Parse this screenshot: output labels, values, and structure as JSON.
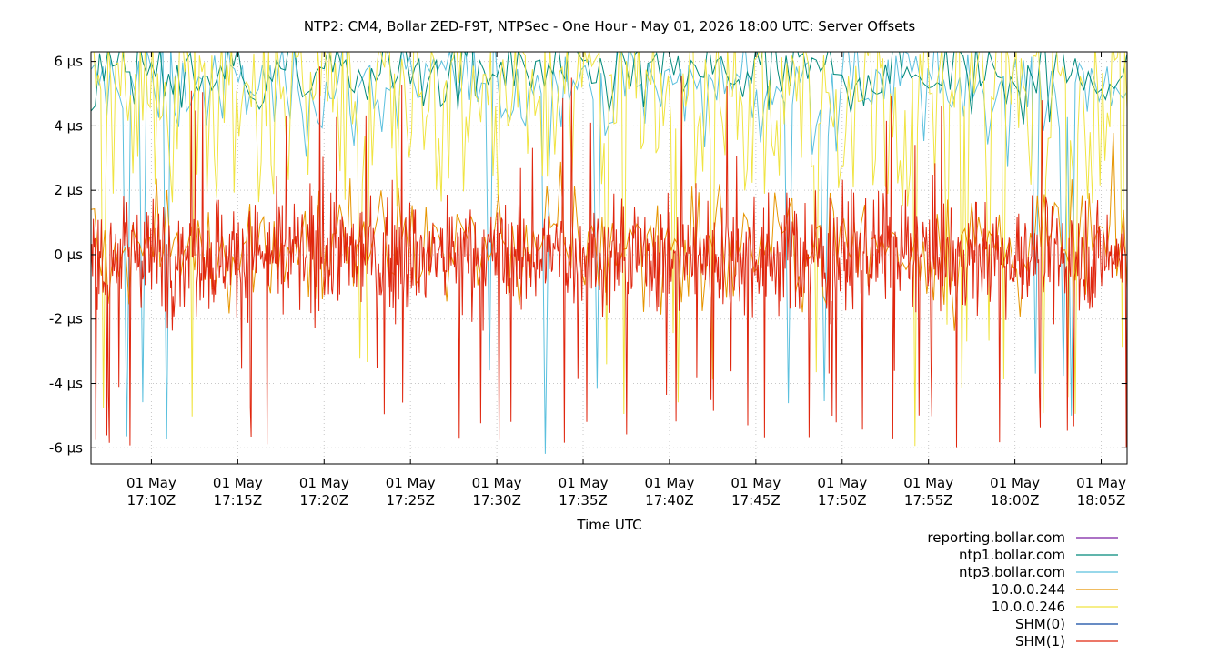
{
  "chart_data": {
    "type": "line",
    "title": "NTP2: CM4, Bollar ZED-F9T, NTPSec - One Hour - May 01, 2026 18:00 UTC: Server Offsets",
    "xlabel": "Time UTC",
    "ylabel": "",
    "x_range": [
      "2026-05-01T17:06:30Z",
      "2026-05-01T18:06:30Z"
    ],
    "ylim": [
      -6.5,
      6.3
    ],
    "y_unit": "µs",
    "grid": true,
    "legend_position": "bottom-right",
    "x_ticks": [
      {
        "t": "17:10",
        "line1": "01 May",
        "line2": "17:10Z"
      },
      {
        "t": "17:15",
        "line1": "01 May",
        "line2": "17:15Z"
      },
      {
        "t": "17:20",
        "line1": "01 May",
        "line2": "17:20Z"
      },
      {
        "t": "17:25",
        "line1": "01 May",
        "line2": "17:25Z"
      },
      {
        "t": "17:30",
        "line1": "01 May",
        "line2": "17:30Z"
      },
      {
        "t": "17:35",
        "line1": "01 May",
        "line2": "17:35Z"
      },
      {
        "t": "17:40",
        "line1": "01 May",
        "line2": "17:40Z"
      },
      {
        "t": "17:45",
        "line1": "01 May",
        "line2": "17:45Z"
      },
      {
        "t": "17:50",
        "line1": "01 May",
        "line2": "17:50Z"
      },
      {
        "t": "17:55",
        "line1": "01 May",
        "line2": "17:55Z"
      },
      {
        "t": "18:00",
        "line1": "01 May",
        "line2": "18:00Z"
      },
      {
        "t": "18:05",
        "line1": "01 May",
        "line2": "18:05Z"
      }
    ],
    "y_ticks": [
      {
        "value": 6,
        "label": "6 µs"
      },
      {
        "value": 4,
        "label": "4 µs"
      },
      {
        "value": 2,
        "label": "2 µs"
      },
      {
        "value": 0,
        "label": "0 µs"
      },
      {
        "value": -2,
        "label": "-2 µs"
      },
      {
        "value": -4,
        "label": "-4 µs"
      },
      {
        "value": -6,
        "label": "-6 µs"
      }
    ],
    "series": [
      {
        "name": "reporting.bollar.com",
        "color": "#7b1fa2"
      },
      {
        "name": "ntp1.bollar.com",
        "color": "#00897b"
      },
      {
        "name": "ntp3.bollar.com",
        "color": "#5bc0de"
      },
      {
        "name": "10.0.0.244",
        "color": "#e69500"
      },
      {
        "name": "10.0.0.246",
        "color": "#f0e442"
      },
      {
        "name": "SHM(0)",
        "color": "#0d47a1"
      },
      {
        "name": "SHM(1)",
        "color": "#e0260e"
      }
    ]
  }
}
